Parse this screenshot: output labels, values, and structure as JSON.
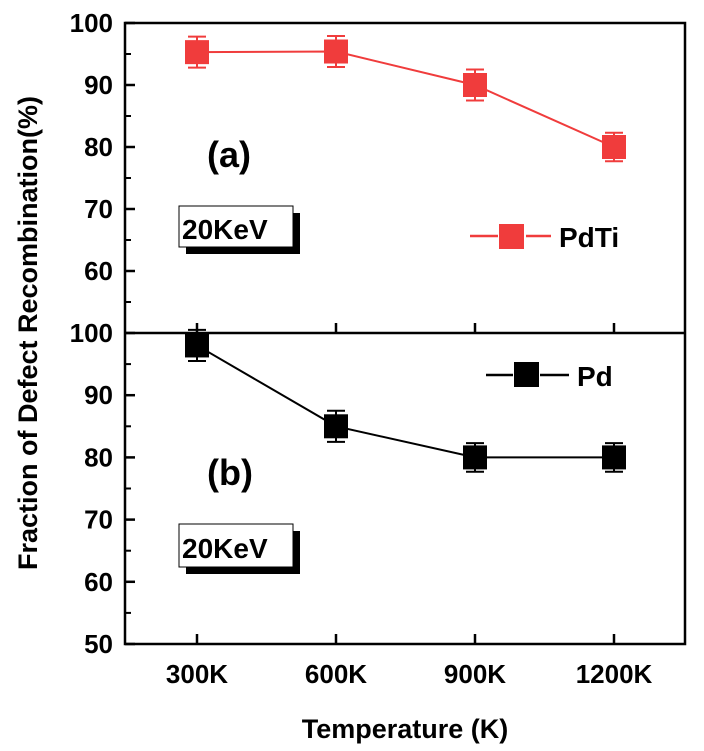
{
  "chart_data": {
    "type": "line",
    "xlabel": "Temperature (K)",
    "ylabel": "Fraction of Defect Recombination(%)",
    "categories": [
      "300K",
      "600K",
      "900K",
      "1200K"
    ],
    "colors": {
      "pdti": "#f03c3c",
      "pd": "#000000"
    },
    "panels": [
      {
        "tag": "(a)",
        "energy_label": "20KeV",
        "ylim": [
          50,
          100
        ],
        "yticks": [
          "60",
          "70",
          "80",
          "90",
          "100"
        ],
        "series": [
          {
            "name": "PdTi",
            "values": [
              95.3,
              95.4,
              90.0,
              80.0
            ],
            "errors": [
              2.5,
              2.5,
              2.5,
              2.3
            ]
          }
        ]
      },
      {
        "tag": "(b)",
        "energy_label": "20KeV",
        "ylim": [
          50,
          100
        ],
        "yticks": [
          "50",
          "60",
          "70",
          "80",
          "90",
          "100"
        ],
        "series": [
          {
            "name": "Pd",
            "values": [
              98.0,
              85.0,
              80.0,
              80.0
            ],
            "errors": [
              2.5,
              2.5,
              2.3,
              2.3
            ]
          }
        ]
      }
    ]
  }
}
